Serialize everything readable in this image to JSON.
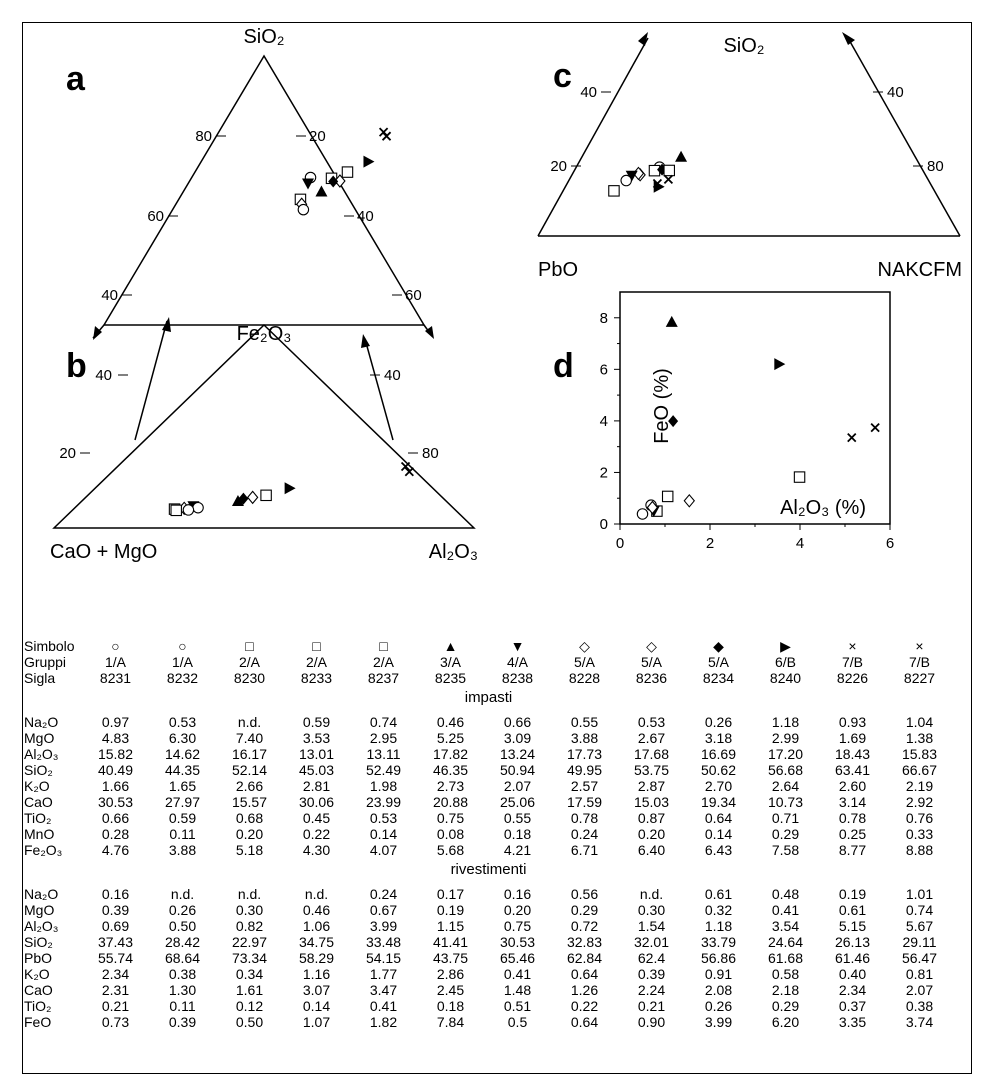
{
  "panels": {
    "a": {
      "label": "a",
      "apex_top": "SiO₂",
      "ticks_left": [
        "80",
        "60",
        "40"
      ],
      "ticks_right": [
        "20",
        "40",
        "60"
      ]
    },
    "b": {
      "label": "b",
      "apex_top": "Fe₂O₃",
      "left_corner": "CaO + MgO",
      "right_corner": "Al₂O₃",
      "ticks_left": [
        "40",
        "20"
      ],
      "ticks_right": [
        "40",
        "80"
      ]
    },
    "c": {
      "label": "c",
      "apex_top": "SiO₂",
      "left_corner": "PbO",
      "right_corner": "NAKCFM",
      "ticks_left": [
        "40",
        "20"
      ],
      "ticks_right": [
        "40",
        "80"
      ]
    },
    "d": {
      "label": "d",
      "ylabel": "FeO (%)",
      "xlabel": "Al₂O₃ (%)"
    }
  },
  "symbols": {
    "8231": "circle",
    "8232": "circle",
    "8230": "square",
    "8233": "square",
    "8237": "square",
    "8235": "triangle-up",
    "8238": "triangle-down",
    "8228": "diamond",
    "8236": "diamond",
    "8234": "diamond-filled",
    "8240": "triangle-right",
    "8226": "cross",
    "8227": "cross"
  },
  "chart_data": [
    {
      "type": "scatter",
      "panel": "a",
      "kind": "ternary",
      "apex": "SiO2",
      "ticks_left": [
        80,
        60,
        40
      ],
      "ticks_right": [
        20,
        40,
        60
      ],
      "points": [
        {
          "sample": "8227",
          "x": 0.787,
          "y": 0.703
        },
        {
          "sample": "8226",
          "x": 0.78,
          "y": 0.718
        },
        {
          "sample": "8240",
          "x": 0.744,
          "y": 0.609
        },
        {
          "sample": "8237",
          "x": 0.694,
          "y": 0.57
        },
        {
          "sample": "8233",
          "x": 0.656,
          "y": 0.547
        },
        {
          "sample": "8236",
          "x": 0.676,
          "y": 0.537
        },
        {
          "sample": "8234",
          "x": 0.66,
          "y": 0.535
        },
        {
          "sample": "8232",
          "x": 0.606,
          "y": 0.55
        },
        {
          "sample": "8238",
          "x": 0.6,
          "y": 0.528
        },
        {
          "sample": "8235",
          "x": 0.632,
          "y": 0.498
        },
        {
          "sample": "8230",
          "x": 0.582,
          "y": 0.469
        },
        {
          "sample": "8228",
          "x": 0.585,
          "y": 0.451
        },
        {
          "sample": "8231",
          "x": 0.589,
          "y": 0.431
        }
      ]
    },
    {
      "type": "scatter",
      "panel": "b",
      "kind": "ternary",
      "apex": "Fe2O3",
      "ticks_left": [
        40,
        20
      ],
      "ticks_right": [
        40,
        80
      ],
      "points": [
        {
          "sample": "8227",
          "x": 0.846,
          "y": 0.277
        },
        {
          "sample": "8226",
          "x": 0.837,
          "y": 0.303
        },
        {
          "sample": "8240",
          "x": 0.561,
          "y": 0.196
        },
        {
          "sample": "8237",
          "x": 0.505,
          "y": 0.161
        },
        {
          "sample": "8236",
          "x": 0.473,
          "y": 0.151
        },
        {
          "sample": "8234",
          "x": 0.451,
          "y": 0.145
        },
        {
          "sample": "8235",
          "x": 0.438,
          "y": 0.133
        },
        {
          "sample": "8238",
          "x": 0.332,
          "y": 0.107
        },
        {
          "sample": "8232",
          "x": 0.343,
          "y": 0.1
        },
        {
          "sample": "8228",
          "x": 0.31,
          "y": 0.097
        },
        {
          "sample": "8233",
          "x": 0.287,
          "y": 0.093
        },
        {
          "sample": "8231",
          "x": 0.32,
          "y": 0.089
        },
        {
          "sample": "8230",
          "x": 0.291,
          "y": 0.087
        }
      ]
    },
    {
      "type": "scatter",
      "panel": "c",
      "kind": "ternary",
      "apex": "SiO2",
      "ticks_left": [
        40,
        20
      ],
      "ticks_right": [
        40,
        80
      ],
      "points": [
        {
          "sample": "8235",
          "x": 0.339,
          "y": 0.4
        },
        {
          "sample": "8232",
          "x": 0.288,
          "y": 0.348
        },
        {
          "sample": "8233",
          "x": 0.276,
          "y": 0.33
        },
        {
          "sample": "8234",
          "x": 0.294,
          "y": 0.335
        },
        {
          "sample": "8237",
          "x": 0.311,
          "y": 0.331
        },
        {
          "sample": "8228",
          "x": 0.242,
          "y": 0.309
        },
        {
          "sample": "8236",
          "x": 0.238,
          "y": 0.316
        },
        {
          "sample": "8238",
          "x": 0.222,
          "y": 0.304
        },
        {
          "sample": "8227",
          "x": 0.309,
          "y": 0.286
        },
        {
          "sample": "8231",
          "x": 0.209,
          "y": 0.28
        },
        {
          "sample": "8226",
          "x": 0.283,
          "y": 0.265
        },
        {
          "sample": "8240",
          "x": 0.286,
          "y": 0.249
        },
        {
          "sample": "8230",
          "x": 0.18,
          "y": 0.228
        }
      ]
    },
    {
      "type": "scatter",
      "panel": "d",
      "xlabel": "Al₂O₃ (%)",
      "ylabel": "FeO (%)",
      "xlim": [
        0,
        6
      ],
      "ylim": [
        0,
        9
      ],
      "xticks": [
        0,
        2,
        4,
        6
      ],
      "yticks": [
        0,
        2,
        4,
        6,
        8
      ],
      "points": [
        {
          "sample": "8231",
          "x": 0.69,
          "y": 0.73
        },
        {
          "sample": "8232",
          "x": 0.5,
          "y": 0.39
        },
        {
          "sample": "8230",
          "x": 0.82,
          "y": 0.5
        },
        {
          "sample": "8233",
          "x": 1.06,
          "y": 1.07
        },
        {
          "sample": "8237",
          "x": 3.99,
          "y": 1.82
        },
        {
          "sample": "8235",
          "x": 1.15,
          "y": 7.84
        },
        {
          "sample": "8238",
          "x": 0.75,
          "y": 0.5
        },
        {
          "sample": "8228",
          "x": 0.72,
          "y": 0.64
        },
        {
          "sample": "8236",
          "x": 1.54,
          "y": 0.9
        },
        {
          "sample": "8234",
          "x": 1.18,
          "y": 3.99
        },
        {
          "sample": "8240",
          "x": 3.54,
          "y": 6.2
        },
        {
          "sample": "8226",
          "x": 5.15,
          "y": 3.35
        },
        {
          "sample": "8227",
          "x": 5.67,
          "y": 3.74
        }
      ]
    },
    {
      "type": "table",
      "row_headers": {
        "symbol": "Simbolo",
        "group": "Gruppi",
        "code": "Sigla"
      },
      "columns": [
        {
          "symbol": "○",
          "group": "1/A",
          "code": "8231"
        },
        {
          "symbol": "○",
          "group": "1/A",
          "code": "8232"
        },
        {
          "symbol": "□",
          "group": "2/A",
          "code": "8230"
        },
        {
          "symbol": "□",
          "group": "2/A",
          "code": "8233"
        },
        {
          "symbol": "□",
          "group": "2/A",
          "code": "8237"
        },
        {
          "symbol": "▲",
          "group": "3/A",
          "code": "8235"
        },
        {
          "symbol": "▼",
          "group": "4/A",
          "code": "8238"
        },
        {
          "symbol": "◇",
          "group": "5/A",
          "code": "8228"
        },
        {
          "symbol": "◇",
          "group": "5/A",
          "code": "8236"
        },
        {
          "symbol": "◆",
          "group": "5/A",
          "code": "8234"
        },
        {
          "symbol": "▶",
          "group": "6/B",
          "code": "8240"
        },
        {
          "symbol": "×",
          "group": "7/B",
          "code": "8226"
        },
        {
          "symbol": "×",
          "group": "7/B",
          "code": "8227"
        }
      ],
      "sections": [
        {
          "title": "impasti",
          "rows": [
            {
              "label": "Na₂O",
              "values": [
                "0.97",
                "0.53",
                "n.d.",
                "0.59",
                "0.74",
                "0.46",
                "0.66",
                "0.55",
                "0.53",
                "0.26",
                "1.18",
                "0.93",
                "1.04"
              ]
            },
            {
              "label": "MgO",
              "values": [
                "4.83",
                "6.30",
                "7.40",
                "3.53",
                "2.95",
                "5.25",
                "3.09",
                "3.88",
                "2.67",
                "3.18",
                "2.99",
                "1.69",
                "1.38"
              ]
            },
            {
              "label": "Al₂O₃",
              "values": [
                "15.82",
                "14.62",
                "16.17",
                "13.01",
                "13.11",
                "17.82",
                "13.24",
                "17.73",
                "17.68",
                "16.69",
                "17.20",
                "18.43",
                "15.83"
              ]
            },
            {
              "label": "SiO₂",
              "values": [
                "40.49",
                "44.35",
                "52.14",
                "45.03",
                "52.49",
                "46.35",
                "50.94",
                "49.95",
                "53.75",
                "50.62",
                "56.68",
                "63.41",
                "66.67"
              ]
            },
            {
              "label": "K₂O",
              "values": [
                "1.66",
                "1.65",
                "2.66",
                "2.81",
                "1.98",
                "2.73",
                "2.07",
                "2.57",
                "2.87",
                "2.70",
                "2.64",
                "2.60",
                "2.19"
              ]
            },
            {
              "label": "CaO",
              "values": [
                "30.53",
                "27.97",
                "15.57",
                "30.06",
                "23.99",
                "20.88",
                "25.06",
                "17.59",
                "15.03",
                "19.34",
                "10.73",
                "3.14",
                "2.92"
              ]
            },
            {
              "label": "TiO₂",
              "values": [
                "0.66",
                "0.59",
                "0.68",
                "0.45",
                "0.53",
                "0.75",
                "0.55",
                "0.78",
                "0.87",
                "0.64",
                "0.71",
                "0.78",
                "0.76"
              ]
            },
            {
              "label": "MnO",
              "values": [
                "0.28",
                "0.11",
                "0.20",
                "0.22",
                "0.14",
                "0.08",
                "0.18",
                "0.24",
                "0.20",
                "0.14",
                "0.29",
                "0.25",
                "0.33"
              ]
            },
            {
              "label": "Fe₂O₃",
              "values": [
                "4.76",
                "3.88",
                "5.18",
                "4.30",
                "4.07",
                "5.68",
                "4.21",
                "6.71",
                "6.40",
                "6.43",
                "7.58",
                "8.77",
                "8.88"
              ]
            }
          ]
        },
        {
          "title": "rivestimenti",
          "rows": [
            {
              "label": "Na₂O",
              "values": [
                "0.16",
                "n.d.",
                "n.d.",
                "n.d.",
                "0.24",
                "0.17",
                "0.16",
                "0.56",
                "n.d.",
                "0.61",
                "0.48",
                "0.19",
                "1.01"
              ]
            },
            {
              "label": "MgO",
              "values": [
                "0.39",
                "0.26",
                "0.30",
                "0.46",
                "0.67",
                "0.19",
                "0.20",
                "0.29",
                "0.30",
                "0.32",
                "0.41",
                "0.61",
                "0.74"
              ]
            },
            {
              "label": "Al₂O₃",
              "values": [
                "0.69",
                "0.50",
                "0.82",
                "1.06",
                "3.99",
                "1.15",
                "0.75",
                "0.72",
                "1.54",
                "1.18",
                "3.54",
                "5.15",
                "5.67"
              ]
            },
            {
              "label": "SiO₂",
              "values": [
                "37.43",
                "28.42",
                "22.97",
                "34.75",
                "33.48",
                "41.41",
                "30.53",
                "32.83",
                "32.01",
                "33.79",
                "24.64",
                "26.13",
                "29.11"
              ]
            },
            {
              "label": "PbO",
              "values": [
                "55.74",
                "68.64",
                "73.34",
                "58.29",
                "54.15",
                "43.75",
                "65.46",
                "62.84",
                "62.4",
                "56.86",
                "61.68",
                "61.46",
                "56.47"
              ]
            },
            {
              "label": "K₂O",
              "values": [
                "2.34",
                "0.38",
                "0.34",
                "1.16",
                "1.77",
                "2.86",
                "0.41",
                "0.64",
                "0.39",
                "0.91",
                "0.58",
                "0.40",
                "0.81"
              ]
            },
            {
              "label": "CaO",
              "values": [
                "2.31",
                "1.30",
                "1.61",
                "3.07",
                "3.47",
                "2.45",
                "1.48",
                "1.26",
                "2.24",
                "2.08",
                "2.18",
                "2.34",
                "2.07"
              ]
            },
            {
              "label": "TiO₂",
              "values": [
                "0.21",
                "0.11",
                "0.12",
                "0.14",
                "0.41",
                "0.18",
                "0.51",
                "0.22",
                "0.21",
                "0.26",
                "0.29",
                "0.37",
                "0.38"
              ]
            },
            {
              "label": "FeO",
              "values": [
                "0.73",
                "0.39",
                "0.50",
                "1.07",
                "1.82",
                "7.84",
                "0.5",
                "0.64",
                "0.90",
                "3.99",
                "6.20",
                "3.35",
                "3.74"
              ]
            }
          ]
        }
      ]
    }
  ]
}
